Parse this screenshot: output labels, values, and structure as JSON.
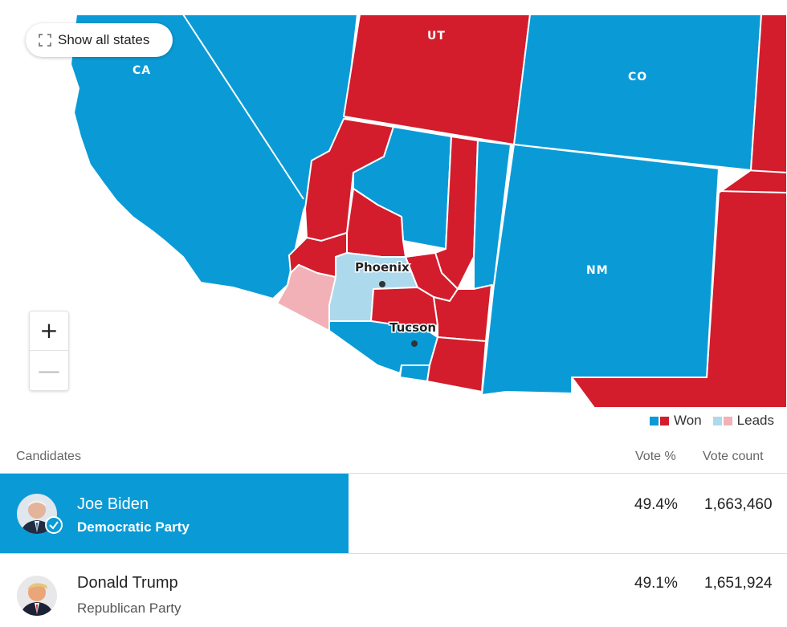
{
  "map": {
    "show_all_label": "Show all states",
    "show_all_icon": "expand-icon",
    "states": [
      "CA",
      "UT",
      "CO",
      "NM"
    ],
    "cities": [
      "Phoenix",
      "Tucson"
    ],
    "zoom_in_label": "+",
    "zoom_out_label": "—",
    "colors": {
      "dem_won": "#0a9bd6",
      "rep_won": "#d31d2c",
      "dem_leads": "#add9ec",
      "rep_leads": "#f2b1b7"
    }
  },
  "legend": {
    "won_label": "Won",
    "leads_label": "Leads"
  },
  "table": {
    "headers": {
      "candidates": "Candidates",
      "vote_pct": "Vote %",
      "vote_count": "Vote count"
    },
    "rows": [
      {
        "name": "Joe Biden",
        "party": "Democratic Party",
        "pct": "49.4%",
        "count": "1,663,460",
        "winner": true
      },
      {
        "name": "Donald Trump",
        "party": "Republican Party",
        "pct": "49.1%",
        "count": "1,651,924",
        "winner": false
      }
    ]
  }
}
